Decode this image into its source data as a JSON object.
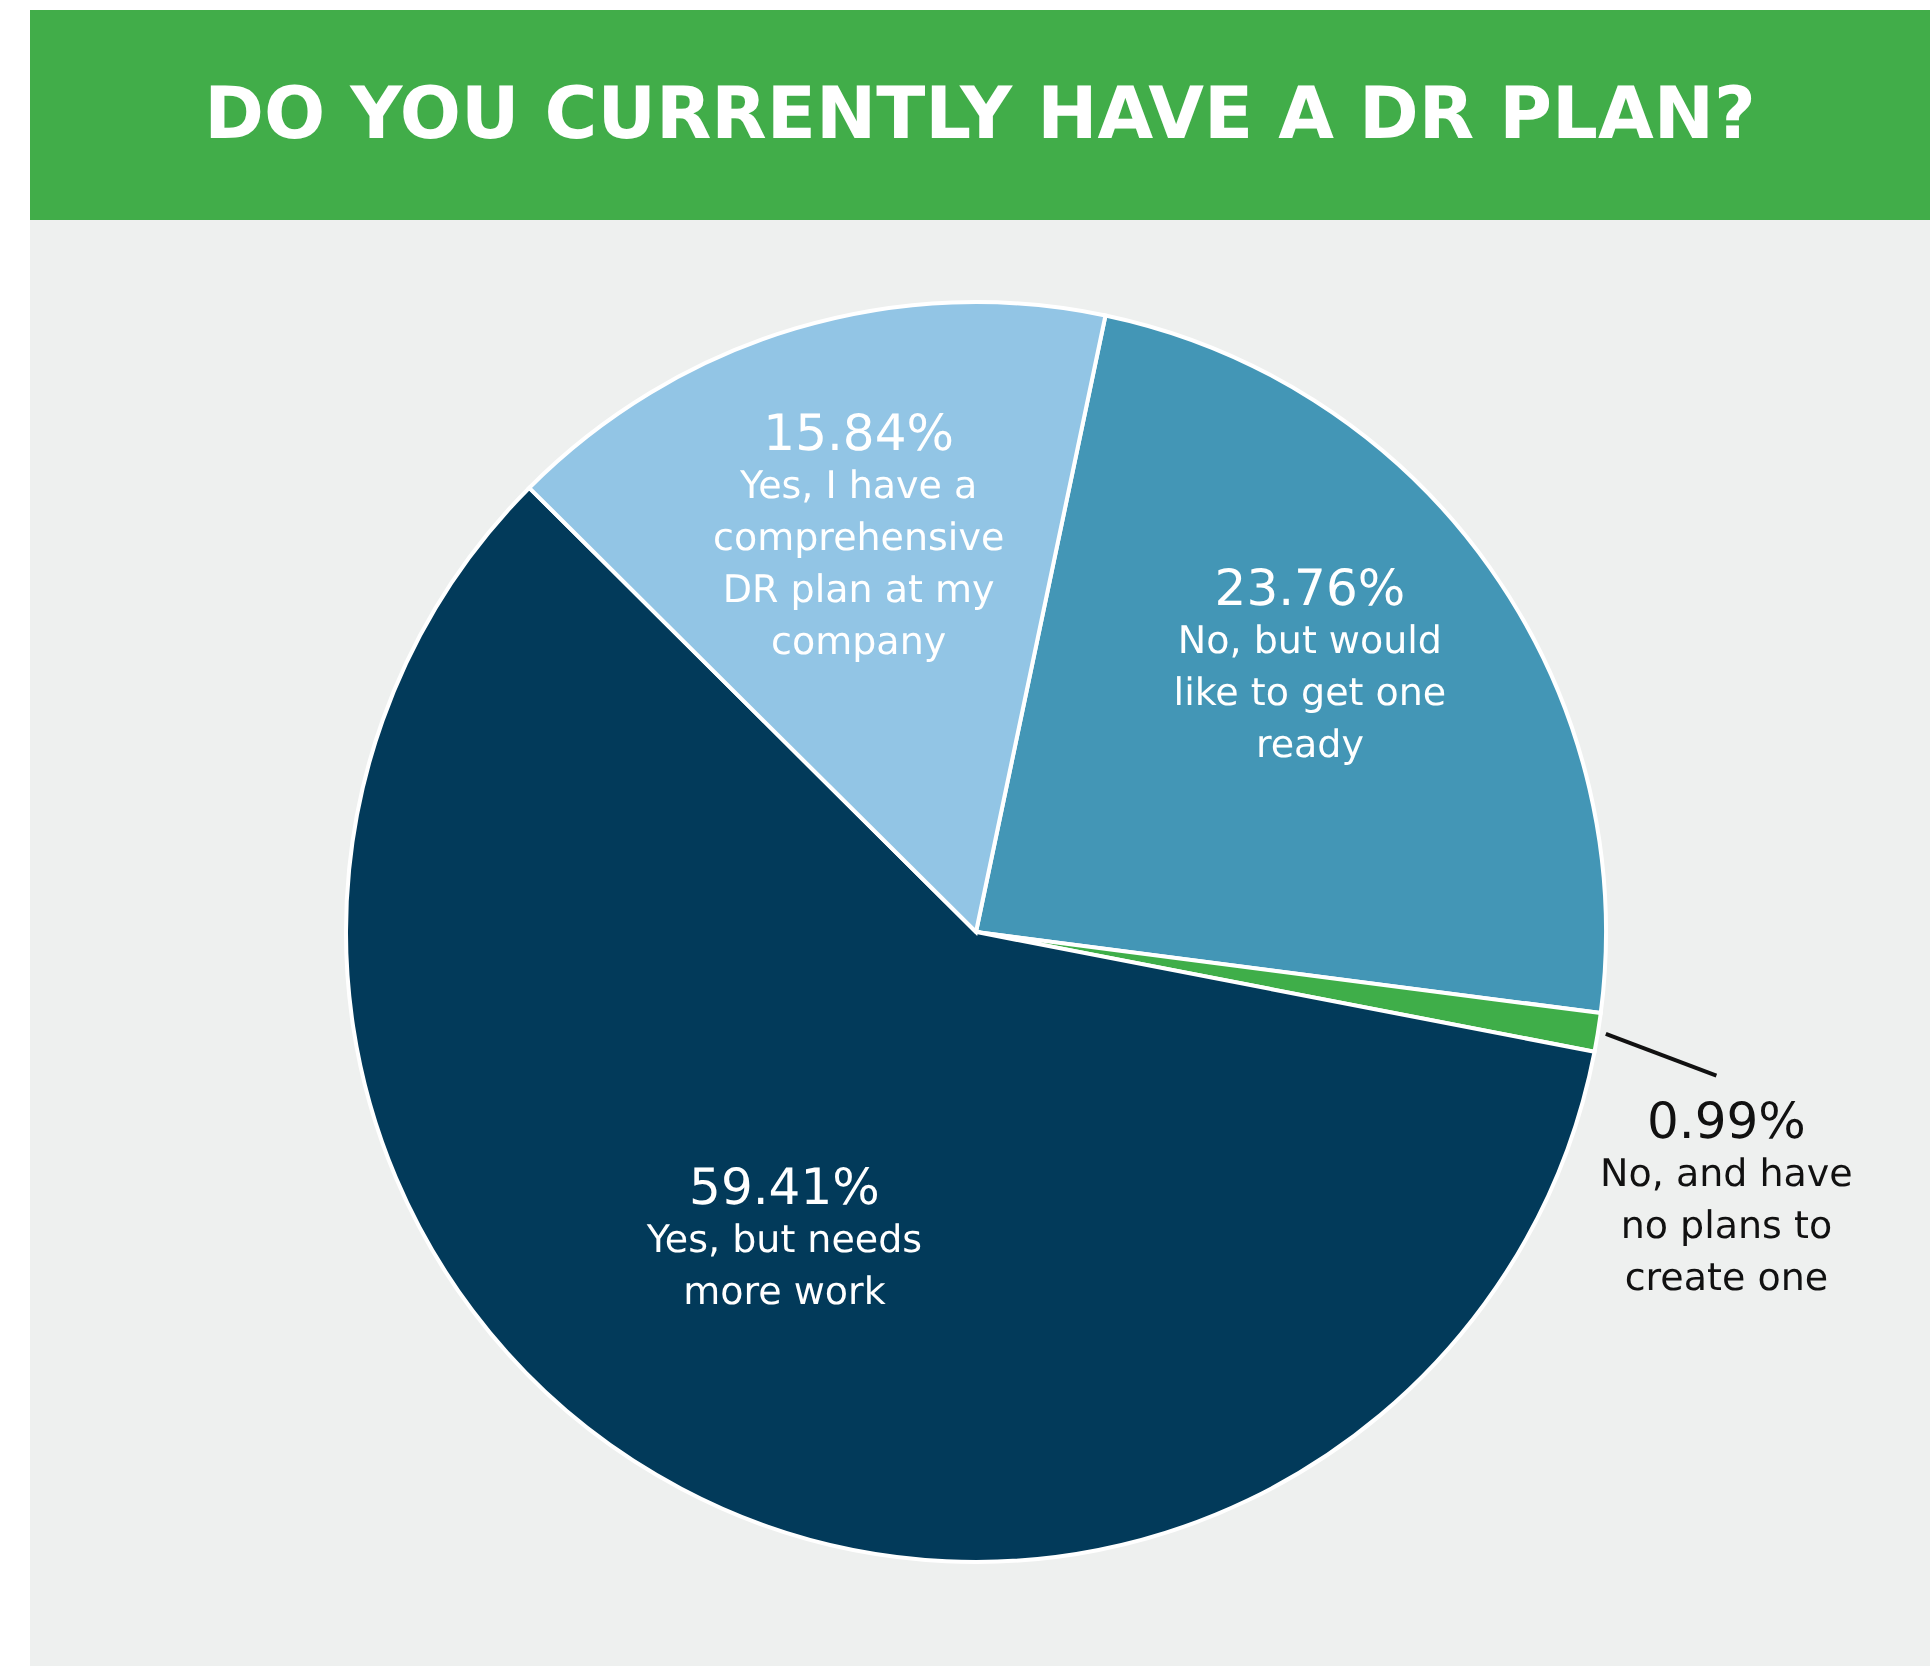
{
  "chart_data": {
    "type": "pie",
    "title": "DO YOU CURRENTLY HAVE A DR PLAN?",
    "categories": [
      "No, but would\nlike to get one\nready",
      "No, and have\nno plans to\ncreate one",
      "Yes, but needs\nmore work",
      "Yes, I have a\ncomprehensive\nDR plan at my\ncompany"
    ],
    "values": [
      23.76,
      0.99,
      59.41,
      15.84
    ],
    "value_labels": [
      "23.76%",
      "0.99%",
      "59.41%",
      "15.84%"
    ],
    "colors": [
      "#4396b6",
      "#3fae49",
      "#023a5a",
      "#92c5e5"
    ]
  }
}
